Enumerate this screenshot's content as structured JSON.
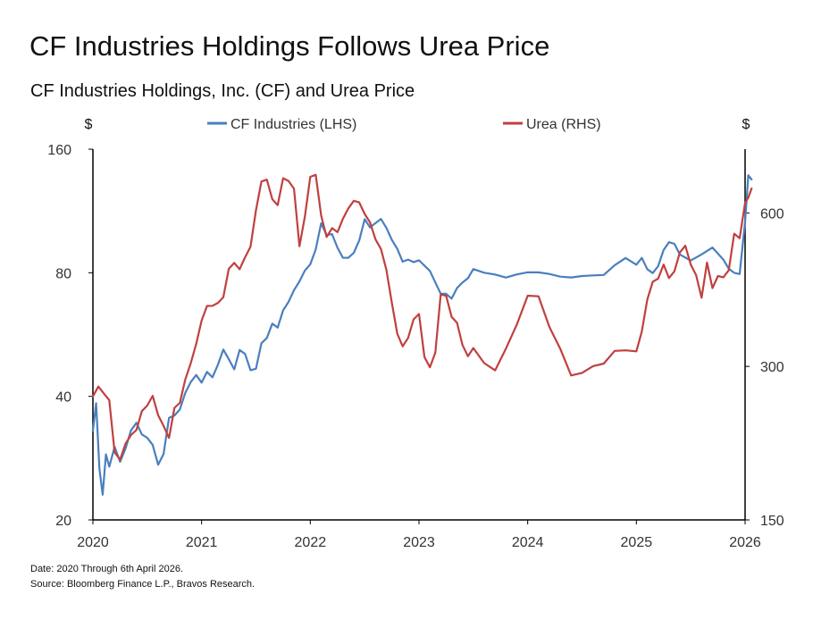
{
  "chart_data": {
    "type": "line",
    "title": "CF Industries Holdings Follows Urea Price",
    "subtitle": "CF Industries Holdings, Inc. (CF) and Urea Price",
    "left_axis": {
      "unit_label": "$",
      "scale": "log",
      "range": [
        20,
        160
      ],
      "ticks": [
        "20",
        "40",
        "80",
        "160"
      ],
      "tick_values": [
        20,
        40,
        80,
        160
      ]
    },
    "right_axis": {
      "unit_label": "$",
      "scale": "log",
      "range": [
        150,
        800
      ],
      "ticks": [
        "150",
        "300",
        "600"
      ],
      "tick_values": [
        150,
        300,
        600
      ]
    },
    "x_axis": {
      "range": [
        2020.0,
        2026.0
      ],
      "ticks": [
        "2020",
        "2021",
        "2022",
        "2023",
        "2024",
        "2025",
        "2026"
      ],
      "tick_values": [
        2020,
        2021,
        2022,
        2023,
        2024,
        2025,
        2026
      ]
    },
    "legend_position": "top",
    "grid": false,
    "series": [
      {
        "name": "CF Industries (LHS)",
        "axis": "left",
        "color": "#4a7fbe",
        "x": [
          2020.0,
          2020.03,
          2020.06,
          2020.09,
          2020.12,
          2020.15,
          2020.2,
          2020.25,
          2020.3,
          2020.35,
          2020.4,
          2020.45,
          2020.5,
          2020.55,
          2020.6,
          2020.65,
          2020.7,
          2020.75,
          2020.8,
          2020.85,
          2020.9,
          2020.95,
          2021.0,
          2021.05,
          2021.1,
          2021.15,
          2021.2,
          2021.25,
          2021.3,
          2021.35,
          2021.4,
          2021.45,
          2021.5,
          2021.55,
          2021.6,
          2021.65,
          2021.7,
          2021.75,
          2021.8,
          2021.85,
          2021.9,
          2021.95,
          2022.0,
          2022.05,
          2022.1,
          2022.15,
          2022.2,
          2022.25,
          2022.3,
          2022.35,
          2022.4,
          2022.45,
          2022.5,
          2022.55,
          2022.6,
          2022.65,
          2022.7,
          2022.75,
          2022.8,
          2022.85,
          2022.9,
          2022.95,
          2023.0,
          2023.1,
          2023.2,
          2023.25,
          2023.3,
          2023.35,
          2023.4,
          2023.45,
          2023.5,
          2023.6,
          2023.7,
          2023.8,
          2023.9,
          2024.0,
          2024.1,
          2024.2,
          2024.3,
          2024.4,
          2024.5,
          2024.6,
          2024.7,
          2024.8,
          2024.9,
          2025.0,
          2025.05,
          2025.1,
          2025.15,
          2025.2,
          2025.25,
          2025.3,
          2025.35,
          2025.4,
          2025.5,
          2025.6,
          2025.7,
          2025.8,
          2025.85,
          2025.9,
          2025.95,
          2026.0,
          2026.03,
          2026.06
        ],
        "values": [
          33,
          38,
          27,
          23,
          29,
          27,
          30,
          28,
          30,
          33,
          34,
          32,
          32,
          30,
          27,
          29,
          35,
          36,
          37,
          41,
          43,
          45,
          43,
          46,
          45,
          48,
          52,
          50,
          47,
          52,
          50,
          46,
          47,
          54,
          56,
          60,
          58,
          64,
          68,
          72,
          76,
          80,
          84,
          92,
          105,
          98,
          100,
          92,
          88,
          88,
          90,
          97,
          107,
          103,
          106,
          107,
          103,
          97,
          92,
          86,
          87,
          86,
          85,
          82,
          72,
          72,
          69,
          74,
          76,
          78,
          82,
          80,
          80,
          79,
          80,
          80,
          81,
          79,
          79,
          79,
          78,
          79,
          80,
          84,
          88,
          84,
          87,
          82,
          80,
          82,
          90,
          96,
          94,
          88,
          85,
          88,
          91,
          87,
          83,
          80,
          80,
          105,
          140,
          135
        ]
      },
      {
        "name": "Urea (RHS)",
        "axis": "right",
        "color": "#c0403f",
        "x": [
          2020.0,
          2020.05,
          2020.1,
          2020.15,
          2020.2,
          2020.25,
          2020.3,
          2020.35,
          2020.4,
          2020.45,
          2020.5,
          2020.55,
          2020.6,
          2020.65,
          2020.7,
          2020.75,
          2020.8,
          2020.85,
          2020.9,
          2020.95,
          2021.0,
          2021.05,
          2021.1,
          2021.15,
          2021.2,
          2021.25,
          2021.3,
          2021.35,
          2021.4,
          2021.45,
          2021.5,
          2021.55,
          2021.6,
          2021.65,
          2021.7,
          2021.75,
          2021.8,
          2021.85,
          2021.9,
          2021.95,
          2022.0,
          2022.05,
          2022.1,
          2022.15,
          2022.2,
          2022.25,
          2022.3,
          2022.35,
          2022.4,
          2022.45,
          2022.5,
          2022.55,
          2022.6,
          2022.65,
          2022.7,
          2022.75,
          2022.8,
          2022.85,
          2022.9,
          2022.95,
          2023.0,
          2023.05,
          2023.1,
          2023.15,
          2023.2,
          2023.25,
          2023.3,
          2023.35,
          2023.4,
          2023.45,
          2023.5,
          2023.6,
          2023.7,
          2023.8,
          2023.9,
          2024.0,
          2024.1,
          2024.2,
          2024.3,
          2024.4,
          2024.5,
          2024.6,
          2024.7,
          2024.8,
          2024.9,
          2025.0,
          2025.05,
          2025.1,
          2025.15,
          2025.2,
          2025.25,
          2025.3,
          2025.35,
          2025.4,
          2025.45,
          2025.5,
          2025.55,
          2025.6,
          2025.65,
          2025.7,
          2025.75,
          2025.8,
          2025.85,
          2025.9,
          2025.95,
          2026.0,
          2026.03,
          2026.06
        ],
        "values": [
          262,
          272,
          265,
          258,
          205,
          195,
          210,
          220,
          225,
          245,
          255,
          262,
          240,
          230,
          215,
          250,
          255,
          285,
          300,
          330,
          365,
          390,
          400,
          398,
          405,
          470,
          475,
          470,
          485,
          520,
          610,
          690,
          700,
          640,
          620,
          710,
          690,
          660,
          520,
          595,
          700,
          705,
          590,
          545,
          560,
          545,
          580,
          620,
          635,
          620,
          590,
          575,
          535,
          510,
          470,
          395,
          350,
          330,
          340,
          370,
          380,
          315,
          295,
          315,
          420,
          410,
          380,
          360,
          330,
          315,
          325,
          305,
          295,
          330,
          360,
          415,
          415,
          355,
          320,
          290,
          295,
          300,
          305,
          320,
          320,
          320,
          350,
          410,
          440,
          445,
          480,
          450,
          455,
          500,
          515,
          470,
          455,
          405,
          480,
          430,
          450,
          455,
          465,
          540,
          540,
          620,
          640,
          670
        ]
      }
    ]
  },
  "notes": {
    "date": "Date: 2020 Through 6th April 2026.",
    "source": "Source: Bloomberg Finance L.P., Bravos Research."
  }
}
